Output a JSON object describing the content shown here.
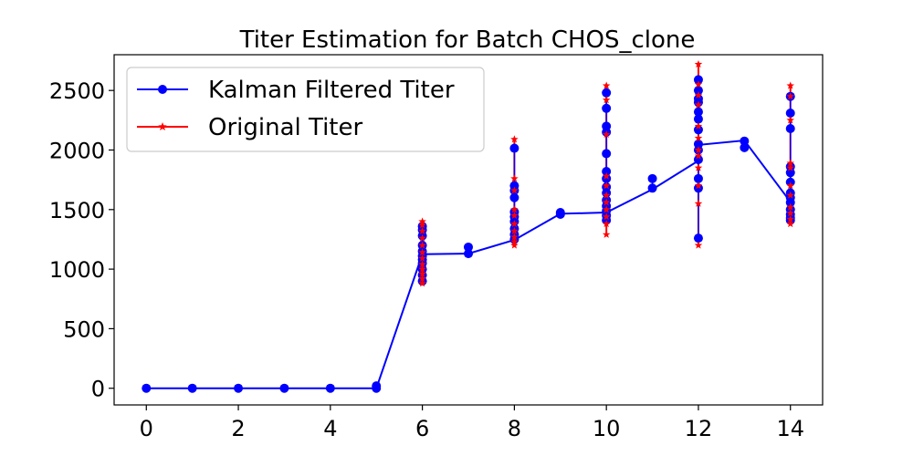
{
  "chart_data": {
    "type": "line",
    "title": "Titer Estimation for Batch CHOS_clone",
    "xlabel": "",
    "ylabel": "",
    "xlim": [
      -0.7,
      14.7
    ],
    "ylim": [
      -140,
      2800
    ],
    "xticks": [
      0,
      2,
      4,
      6,
      8,
      10,
      12,
      14
    ],
    "yticks": [
      0,
      500,
      1000,
      1500,
      2000,
      2500
    ],
    "grid": false,
    "legend_position": "top-left",
    "series": [
      {
        "name": "Kalman Filtered Titer",
        "color": "#0000ff",
        "marker": "circle",
        "line": [
          [
            0,
            0
          ],
          [
            1,
            0
          ],
          [
            2,
            0
          ],
          [
            3,
            0
          ],
          [
            4,
            0
          ],
          [
            5,
            0
          ],
          [
            6,
            1125
          ],
          [
            7,
            1130
          ],
          [
            8,
            1245
          ],
          [
            9,
            1465
          ],
          [
            10,
            1475
          ],
          [
            11,
            1670
          ],
          [
            12,
            1910
          ],
          [
            12.05,
            2045
          ],
          [
            13,
            2080
          ],
          [
            14,
            1565
          ]
        ],
        "points": [
          [
            0,
            0
          ],
          [
            1,
            0
          ],
          [
            2,
            0
          ],
          [
            3,
            0
          ],
          [
            4,
            0
          ],
          [
            5,
            0
          ],
          [
            5,
            20
          ],
          [
            6,
            900
          ],
          [
            6,
            950
          ],
          [
            6,
            1000
          ],
          [
            6,
            1050
          ],
          [
            6,
            1080
          ],
          [
            6,
            1110
          ],
          [
            6,
            1150
          ],
          [
            6,
            1200
          ],
          [
            6,
            1280
          ],
          [
            6,
            1330
          ],
          [
            6,
            1360
          ],
          [
            7,
            1130
          ],
          [
            7,
            1185
          ],
          [
            8,
            1250
          ],
          [
            8,
            1290
          ],
          [
            8,
            1340
          ],
          [
            8,
            1400
          ],
          [
            8,
            1440
          ],
          [
            8,
            1480
          ],
          [
            8,
            1600
          ],
          [
            8,
            1660
          ],
          [
            8,
            1700
          ],
          [
            8,
            2015
          ],
          [
            9,
            1460
          ],
          [
            9,
            1475
          ],
          [
            10,
            1410
          ],
          [
            10,
            1450
          ],
          [
            10,
            1490
          ],
          [
            10,
            1530
          ],
          [
            10,
            1580
          ],
          [
            10,
            1640
          ],
          [
            10,
            1690
          ],
          [
            10,
            1760
          ],
          [
            10,
            1820
          ],
          [
            10,
            1970
          ],
          [
            10,
            2150
          ],
          [
            10,
            2200
          ],
          [
            10,
            2350
          ],
          [
            10,
            2480
          ],
          [
            11,
            1680
          ],
          [
            11,
            1760
          ],
          [
            12,
            1260
          ],
          [
            12,
            1680
          ],
          [
            12,
            1760
          ],
          [
            12,
            1920
          ],
          [
            12,
            2000
          ],
          [
            12,
            2050
          ],
          [
            12,
            2170
          ],
          [
            12,
            2260
          ],
          [
            12,
            2320
          ],
          [
            12,
            2400
          ],
          [
            12,
            2430
          ],
          [
            12,
            2500
          ],
          [
            12,
            2590
          ],
          [
            13,
            2020
          ],
          [
            13,
            2075
          ],
          [
            14,
            1410
          ],
          [
            14,
            1430
          ],
          [
            14,
            1460
          ],
          [
            14,
            1500
          ],
          [
            14,
            1560
          ],
          [
            14,
            1600
          ],
          [
            14,
            1640
          ],
          [
            14,
            1730
          ],
          [
            14,
            1810
          ],
          [
            14,
            1860
          ],
          [
            14,
            2180
          ],
          [
            14,
            2310
          ],
          [
            14,
            2450
          ]
        ]
      },
      {
        "name": "Original Titer",
        "color": "#ff0000",
        "marker": "star",
        "points": [
          [
            6,
            880
          ],
          [
            6,
            920
          ],
          [
            6,
            960
          ],
          [
            6,
            1000
          ],
          [
            6,
            1040
          ],
          [
            6,
            1090
          ],
          [
            6,
            1140
          ],
          [
            6,
            1200
          ],
          [
            6,
            1260
          ],
          [
            6,
            1320
          ],
          [
            6,
            1370
          ],
          [
            6,
            1400
          ],
          [
            8,
            1200
          ],
          [
            8,
            1230
          ],
          [
            8,
            1270
          ],
          [
            8,
            1320
          ],
          [
            8,
            1380
          ],
          [
            8,
            1450
          ],
          [
            8,
            1500
          ],
          [
            8,
            1660
          ],
          [
            8,
            1760
          ],
          [
            8,
            2090
          ],
          [
            10,
            1290
          ],
          [
            10,
            1380
          ],
          [
            10,
            1440
          ],
          [
            10,
            1500
          ],
          [
            10,
            1560
          ],
          [
            10,
            1620
          ],
          [
            10,
            1700
          ],
          [
            10,
            1780
          ],
          [
            10,
            2130
          ],
          [
            10,
            2420
          ],
          [
            10,
            2540
          ],
          [
            12,
            1200
          ],
          [
            12,
            1550
          ],
          [
            12,
            1700
          ],
          [
            12,
            1850
          ],
          [
            12,
            1950
          ],
          [
            12,
            2000
          ],
          [
            12,
            2100
          ],
          [
            12,
            2200
          ],
          [
            12,
            2380
          ],
          [
            12,
            2460
          ],
          [
            12,
            2550
          ],
          [
            12,
            2720
          ],
          [
            14,
            1380
          ],
          [
            14,
            1420
          ],
          [
            14,
            1470
          ],
          [
            14,
            1520
          ],
          [
            14,
            1620
          ],
          [
            14,
            1700
          ],
          [
            14,
            1850
          ],
          [
            14,
            1890
          ],
          [
            14,
            2250
          ],
          [
            14,
            2450
          ],
          [
            14,
            2540
          ]
        ]
      }
    ]
  }
}
